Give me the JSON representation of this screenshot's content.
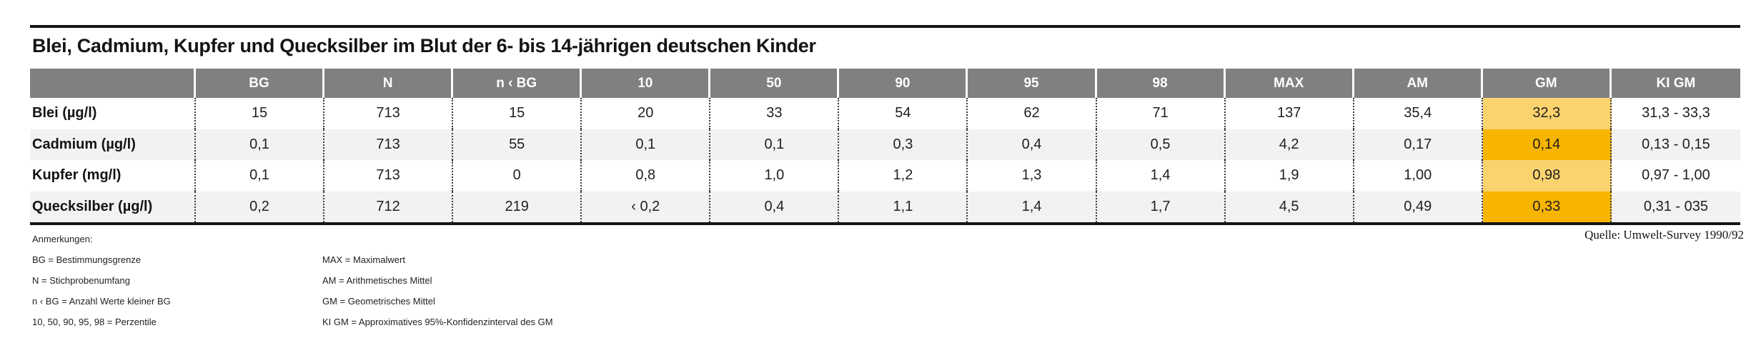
{
  "title": "Blei, Cadmium, Kupfer und Quecksilber im Blut der 6- bis 14-jährigen deutschen Kinder",
  "table": {
    "column_headers": [
      "",
      "BG",
      "N",
      "n ‹ BG",
      "10",
      "50",
      "90",
      "95",
      "98",
      "MAX",
      "AM",
      "GM",
      "KI GM"
    ],
    "highlight_header": "GM",
    "rows": [
      {
        "label": "Blei (µg/l)",
        "values": [
          "15",
          "713",
          "15",
          "20",
          "33",
          "54",
          "62",
          "71",
          "137",
          "35,4",
          "32,3",
          "31,3 - 33,3"
        ]
      },
      {
        "label": "Cadmium (µg/l)",
        "values": [
          "0,1",
          "713",
          "55",
          "0,1",
          "0,1",
          "0,3",
          "0,4",
          "0,5",
          "4,2",
          "0,17",
          "0,14",
          "0,13 - 0,15"
        ]
      },
      {
        "label": "Kupfer (mg/l)",
        "values": [
          "0,1",
          "713",
          "0",
          "0,8",
          "1,0",
          "1,2",
          "1,3",
          "1,4",
          "1,9",
          "1,00",
          "0,98",
          "0,97 - 1,00"
        ]
      },
      {
        "label": "Quecksilber (µg/l)",
        "values": [
          "0,2",
          "712",
          "219",
          "‹ 0,2",
          "0,4",
          "1,1",
          "1,4",
          "1,7",
          "4,5",
          "0,49",
          "0,33",
          "0,31 - 035"
        ]
      }
    ]
  },
  "notes": {
    "heading": "Anmerkungen:",
    "left": [
      "BG = Bestimmungsgrenze",
      "N = Stichprobenumfang",
      "n ‹ BG = Anzahl Werte kleiner BG",
      "10, 50, 90, 95, 98 = Perzentile"
    ],
    "right": [
      "MAX = Maximalwert",
      "AM = Arithmetisches Mittel",
      "GM = Geometrisches Mittel",
      "KI GM = Approximatives 95%-Konfidenzinterval des GM"
    ]
  },
  "source": "Quelle: Umwelt-Survey 1990/92",
  "colors": {
    "header_bg": "#808080",
    "row_alt_bg": "#f2f2f2",
    "gm_light": "#fbd36e",
    "gm_dark": "#f7b500",
    "rule": "#141414"
  }
}
